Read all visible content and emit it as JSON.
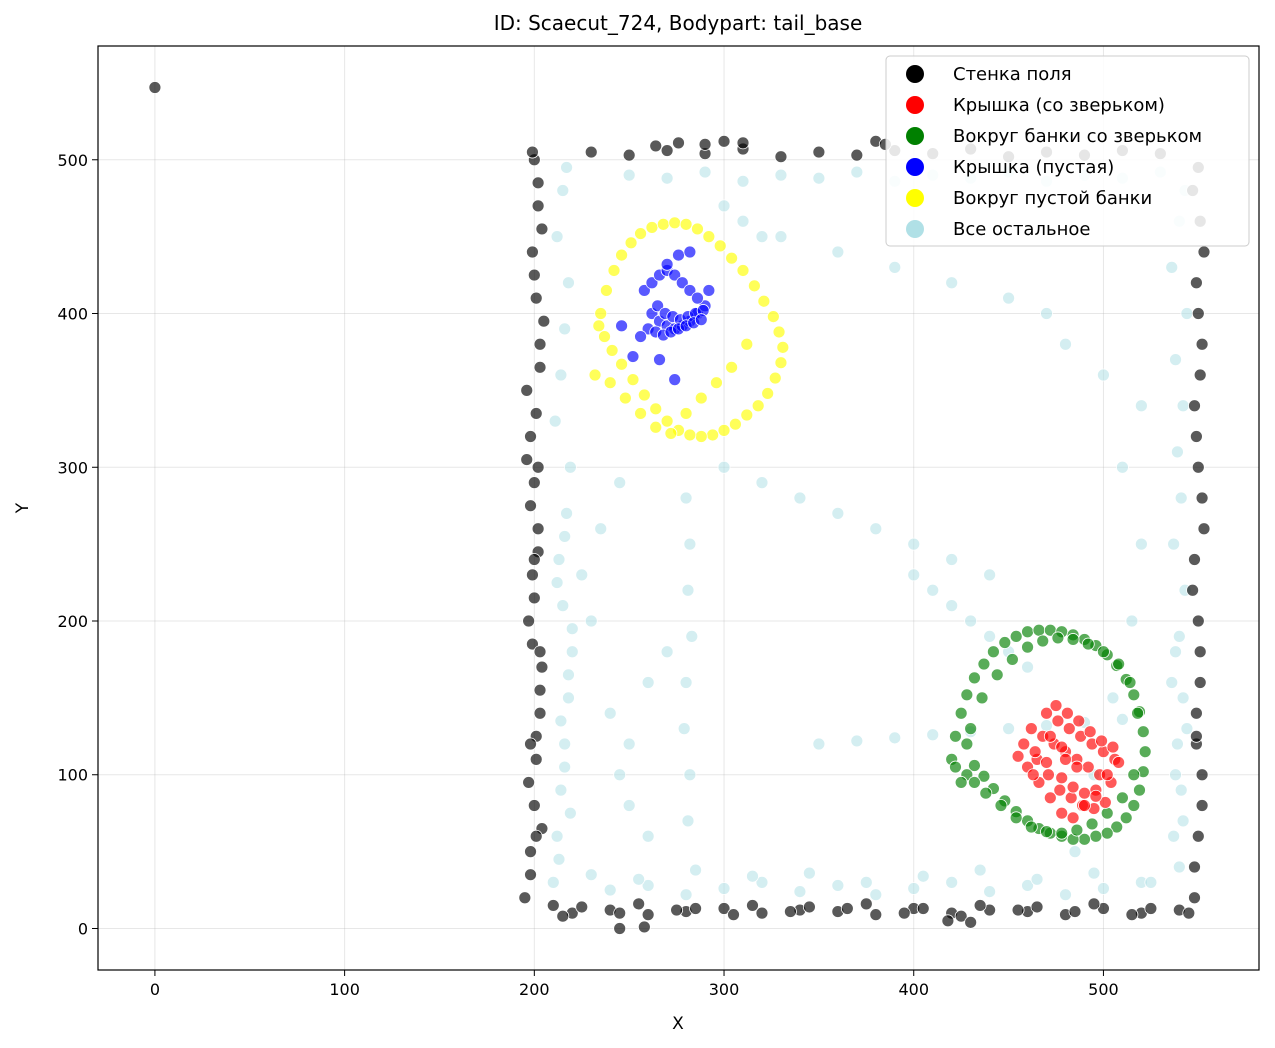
{
  "chart_data": {
    "type": "scatter",
    "title": "ID: Scaecut_724, Bodypart: tail_base",
    "xlabel": "X",
    "ylabel": "Y",
    "xlim": [
      -30,
      582
    ],
    "ylim": [
      -27,
      574
    ],
    "xticks": [
      0,
      100,
      200,
      300,
      400,
      500
    ],
    "yticks": [
      0,
      100,
      200,
      300,
      400,
      500
    ],
    "grid": true,
    "legend_position": "top-right",
    "series": [
      {
        "name": "Стенка поля",
        "color": "#000000",
        "x": [
          0,
          195,
          198,
          200,
          201,
          203,
          204,
          197,
          199,
          202,
          200,
          198,
          196,
          203,
          201,
          199,
          202,
          200,
          198,
          204,
          197,
          201,
          203,
          199,
          200,
          202,
          198,
          196,
          201,
          203,
          205,
          200,
          204,
          202,
          199,
          201,
          198,
          203,
          200,
          202,
          220,
          240,
          260,
          280,
          300,
          320,
          340,
          360,
          380,
          400,
          420,
          440,
          460,
          480,
          500,
          520,
          540,
          230,
          250,
          270,
          290,
          310,
          330,
          350,
          370,
          390,
          410,
          430,
          450,
          470,
          490,
          510,
          530,
          215,
          245,
          275,
          305,
          335,
          365,
          395,
          425,
          455,
          485,
          515,
          545,
          548,
          550,
          552,
          549,
          551,
          547,
          553,
          550,
          548,
          552,
          549,
          551,
          550,
          548,
          552,
          549,
          551,
          550,
          548,
          552,
          549,
          551,
          550,
          553,
          547,
          549,
          210,
          225,
          255,
          285,
          315,
          345,
          375,
          405,
          435,
          465,
          495,
          525,
          290,
          300,
          310,
          264,
          276,
          380,
          385,
          418,
          430,
          245,
          258
        ],
        "y": [
          547,
          20,
          50,
          80,
          110,
          140,
          170,
          200,
          230,
          260,
          290,
          320,
          350,
          380,
          410,
          440,
          470,
          500,
          35,
          65,
          95,
          125,
          155,
          185,
          215,
          245,
          275,
          305,
          335,
          365,
          395,
          425,
          455,
          485,
          505,
          60,
          120,
          180,
          240,
          300,
          10,
          12,
          9,
          11,
          13,
          10,
          12,
          11,
          9,
          13,
          10,
          12,
          11,
          9,
          13,
          10,
          12,
          505,
          503,
          506,
          504,
          507,
          502,
          505,
          503,
          506,
          504,
          507,
          502,
          505,
          503,
          506,
          504,
          8,
          10,
          12,
          9,
          11,
          13,
          10,
          8,
          12,
          11,
          9,
          10,
          20,
          60,
          100,
          140,
          180,
          220,
          260,
          300,
          340,
          380,
          420,
          460,
          495,
          40,
          80,
          120,
          160,
          200,
          240,
          280,
          320,
          360,
          400,
          440,
          480,
          125,
          15,
          14,
          16,
          13,
          15,
          14,
          16,
          13,
          15,
          14,
          16,
          13,
          510,
          512,
          511,
          509,
          511,
          512,
          510,
          5,
          4,
          0,
          1
        ]
      },
      {
        "name": "Крышка (со зверьком)",
        "color": "#ff0000",
        "x": [
          462,
          468,
          474,
          480,
          486,
          492,
          498,
          504,
          458,
          465,
          471,
          477,
          483,
          489,
          495,
          501,
          470,
          476,
          482,
          488,
          494,
          500,
          506,
          460,
          466,
          472,
          478,
          484,
          490,
          496,
          502,
          475,
          481,
          487,
          493,
          499,
          505,
          464,
          470,
          478,
          484,
          490,
          496,
          480,
          486,
          472,
          478,
          455,
          463,
          508
        ],
        "y": [
          130,
          125,
          120,
          115,
          110,
          105,
          100,
          95,
          120,
          110,
          100,
          90,
          85,
          80,
          78,
          82,
          140,
          135,
          130,
          125,
          120,
          115,
          110,
          105,
          95,
          85,
          75,
          72,
          80,
          90,
          100,
          145,
          140,
          135,
          128,
          122,
          118,
          115,
          108,
          98,
          92,
          88,
          86,
          110,
          105,
          125,
          118,
          112,
          100,
          108
        ]
      },
      {
        "name": "Вокруг банки со зверьком",
        "color": "#008000",
        "x": [
          420,
          422,
          425,
          428,
          432,
          437,
          442,
          448,
          454,
          460,
          466,
          472,
          478,
          484,
          490,
          496,
          502,
          507,
          512,
          516,
          519,
          521,
          522,
          521,
          519,
          516,
          512,
          507,
          502,
          496,
          490,
          484,
          478,
          472,
          466,
          460,
          454,
          448,
          442,
          437,
          432,
          428,
          425,
          422,
          430,
          436,
          444,
          452,
          460,
          468,
          476,
          484,
          492,
          500,
          508,
          514,
          518,
          516,
          510,
          502,
          494,
          486,
          478,
          470,
          462,
          454,
          446,
          438,
          432,
          428
        ],
        "y": [
          110,
          125,
          140,
          152,
          163,
          172,
          180,
          186,
          190,
          193,
          194,
          194,
          193,
          191,
          188,
          184,
          178,
          171,
          162,
          152,
          141,
          128,
          115,
          102,
          90,
          80,
          72,
          66,
          62,
          60,
          58,
          58,
          60,
          62,
          65,
          70,
          76,
          83,
          91,
          99,
          106,
          100,
          95,
          105,
          130,
          150,
          165,
          175,
          183,
          187,
          189,
          188,
          185,
          180,
          172,
          160,
          140,
          100,
          85,
          75,
          68,
          64,
          62,
          63,
          66,
          72,
          80,
          88,
          95,
          120
        ]
      },
      {
        "name": "Крышка (пустая)",
        "color": "#0000ff",
        "x": [
          262,
          266,
          270,
          274,
          278,
          282,
          286,
          290,
          258,
          262,
          266,
          270,
          274,
          278,
          282,
          286,
          265,
          269,
          273,
          277,
          281,
          285,
          289,
          260,
          264,
          268,
          272,
          276,
          280,
          284,
          288,
          270,
          276,
          282,
          246,
          252,
          266,
          274,
          292,
          256
        ],
        "y": [
          400,
          395,
          392,
          390,
          392,
          395,
          400,
          405,
          415,
          420,
          425,
          428,
          425,
          420,
          415,
          410,
          405,
          400,
          398,
          396,
          398,
          400,
          402,
          390,
          388,
          386,
          388,
          390,
          392,
          394,
          396,
          432,
          438,
          440,
          392,
          372,
          370,
          357,
          415,
          385
        ]
      },
      {
        "name": "Вокруг пустой банки",
        "color": "#ffff00",
        "x": [
          235,
          238,
          242,
          246,
          251,
          256,
          262,
          268,
          274,
          280,
          286,
          292,
          298,
          304,
          310,
          316,
          321,
          326,
          329,
          331,
          330,
          327,
          323,
          318,
          312,
          306,
          300,
          294,
          288,
          282,
          276,
          270,
          264,
          258,
          252,
          246,
          241,
          237,
          234,
          232,
          240,
          248,
          256,
          264,
          272,
          280,
          288,
          296,
          304,
          312
        ],
        "y": [
          400,
          415,
          428,
          438,
          446,
          452,
          456,
          458,
          459,
          458,
          455,
          450,
          444,
          436,
          428,
          418,
          408,
          398,
          388,
          378,
          368,
          358,
          348,
          340,
          334,
          328,
          324,
          321,
          320,
          321,
          324,
          330,
          338,
          347,
          357,
          367,
          376,
          385,
          392,
          360,
          355,
          345,
          335,
          326,
          322,
          335,
          345,
          355,
          365,
          380
        ]
      },
      {
        "name": "Все остальное",
        "color": "#b0e0e6",
        "x": [
          210,
          212,
          214,
          216,
          218,
          220,
          215,
          213,
          217,
          219,
          211,
          214,
          216,
          218,
          212,
          215,
          217,
          213,
          219,
          216,
          214,
          218,
          220,
          212,
          216,
          240,
          260,
          280,
          300,
          320,
          340,
          360,
          380,
          400,
          420,
          440,
          460,
          480,
          500,
          520,
          250,
          270,
          290,
          310,
          330,
          350,
          370,
          390,
          410,
          430,
          450,
          470,
          490,
          510,
          530,
          230,
          255,
          285,
          315,
          345,
          375,
          405,
          435,
          465,
          495,
          525,
          540,
          542,
          538,
          544,
          536,
          540,
          543,
          537,
          541,
          539,
          542,
          538,
          544,
          536,
          540,
          543,
          537,
          541,
          539,
          542,
          538,
          300,
          320,
          340,
          360,
          380,
          400,
          420,
          440,
          280,
          282,
          281,
          283,
          280,
          279,
          282,
          281,
          350,
          370,
          390,
          410,
          430,
          450,
          470,
          490,
          510,
          400,
          410,
          420,
          430,
          440,
          450,
          460,
          480,
          500,
          520,
          250,
          240,
          260,
          270,
          230,
          225,
          235,
          245,
          330,
          360,
          390,
          420,
          450,
          470,
          510,
          520,
          515,
          505,
          495,
          485,
          300,
          310,
          320,
          260,
          250,
          245
        ],
        "y": [
          30,
          60,
          90,
          120,
          150,
          180,
          210,
          240,
          270,
          300,
          330,
          360,
          390,
          420,
          450,
          480,
          495,
          45,
          75,
          105,
          135,
          165,
          195,
          225,
          255,
          25,
          28,
          22,
          26,
          30,
          24,
          28,
          22,
          26,
          30,
          24,
          28,
          22,
          26,
          30,
          490,
          488,
          492,
          486,
          490,
          488,
          492,
          486,
          490,
          488,
          492,
          486,
          490,
          488,
          492,
          35,
          32,
          38,
          34,
          36,
          30,
          34,
          38,
          32,
          36,
          30,
          40,
          70,
          100,
          130,
          160,
          190,
          220,
          250,
          280,
          310,
          340,
          370,
          400,
          430,
          460,
          480,
          60,
          90,
          120,
          150,
          180,
          300,
          290,
          280,
          270,
          260,
          250,
          240,
          230,
          280,
          250,
          220,
          190,
          160,
          130,
          100,
          70,
          120,
          122,
          124,
          126,
          128,
          130,
          132,
          134,
          136,
          230,
          220,
          210,
          200,
          190,
          180,
          170,
          380,
          360,
          340,
          120,
          140,
          160,
          180,
          200,
          230,
          260,
          290,
          450,
          440,
          430,
          420,
          410,
          400,
          300,
          250,
          200,
          150,
          100,
          50,
          470,
          460,
          450,
          60,
          80,
          100
        ]
      }
    ]
  }
}
